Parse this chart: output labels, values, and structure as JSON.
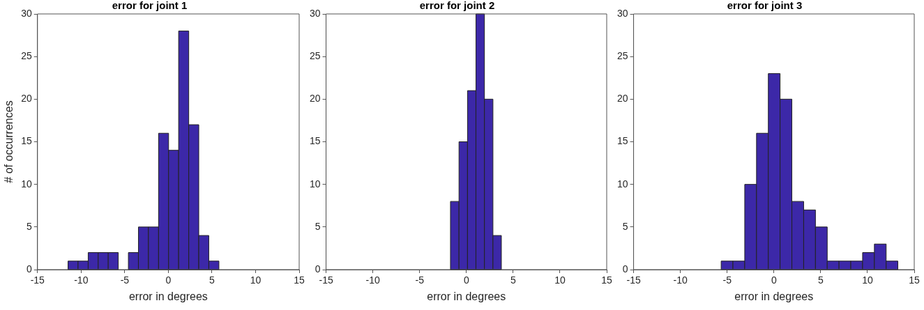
{
  "chart_data": [
    {
      "type": "histogram",
      "title": "error for joint 1",
      "xlabel": "error in degrees",
      "ylabel": "# of occurrences",
      "color": "#3c28a8",
      "bins": [
        -11.5,
        -10.35,
        -9.19,
        -8.04,
        -6.89,
        -5.74,
        -4.58,
        -3.43,
        -2.28,
        -1.12,
        0.03,
        1.18,
        2.34,
        3.49,
        4.64,
        5.8
      ],
      "values": [
        1,
        1,
        2,
        2,
        2,
        0,
        2,
        5,
        5,
        16,
        14,
        28,
        17,
        4,
        1
      ],
      "xlim": [
        -15,
        15
      ],
      "xticks": [
        -15,
        -10,
        -5,
        0,
        5,
        10,
        15
      ],
      "ylim": [
        0,
        30
      ],
      "yticks": [
        0,
        5,
        10,
        15,
        20,
        25,
        30
      ],
      "grid": false,
      "legend": false
    },
    {
      "type": "histogram",
      "title": "error for joint 2",
      "xlabel": "error in degrees",
      "color": "#3c28a8",
      "bins": [
        -1.7,
        -0.79,
        0.12,
        1.02,
        1.93,
        2.84,
        3.74
      ],
      "values": [
        8,
        15,
        21,
        30,
        20,
        4
      ],
      "xlim": [
        -15,
        15
      ],
      "xticks": [
        -15,
        -10,
        -5,
        0,
        5,
        10,
        15
      ],
      "ylim": [
        0,
        30
      ],
      "yticks": [
        0,
        5,
        10,
        15,
        20,
        25,
        30
      ],
      "grid": false,
      "legend": false
    },
    {
      "type": "histogram",
      "title": "error for joint 3",
      "xlabel": "error in degrees",
      "color": "#3c28a8",
      "bins": [
        -5.64,
        -4.38,
        -3.12,
        -1.86,
        -0.6,
        0.66,
        1.92,
        3.18,
        4.44,
        5.7,
        6.96,
        8.22,
        9.48,
        10.74,
        12.0,
        13.25
      ],
      "values": [
        1,
        1,
        10,
        16,
        23,
        20,
        8,
        7,
        5,
        1,
        1,
        1,
        2,
        3,
        1
      ],
      "xlim": [
        -15,
        15
      ],
      "xticks": [
        -15,
        -10,
        -5,
        0,
        5,
        10,
        15
      ],
      "ylim": [
        0,
        30
      ],
      "yticks": [
        0,
        5,
        10,
        15,
        20,
        25,
        30
      ],
      "grid": false,
      "legend": false
    }
  ]
}
